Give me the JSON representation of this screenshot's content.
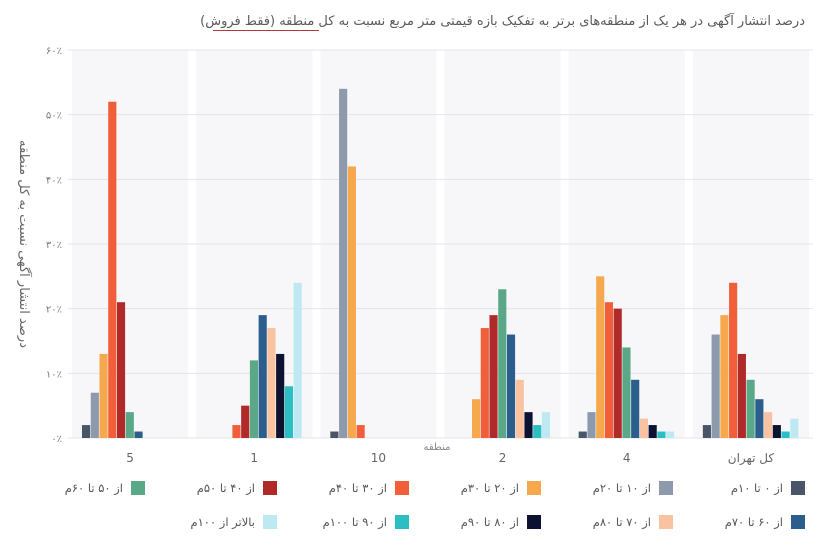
{
  "chart_data": {
    "type": "bar",
    "title": "درصد  انتشار آگهی در هر یک از منطقه‌های برتر به تفکیک بازه قیمتی متر مربع نسبت به کل منطقه (فقط فروش)",
    "xlabel": "منطقه",
    "ylabel": "درصد انتشار آگهی نسبت به کل منطقه",
    "ylim": [
      0,
      60
    ],
    "yticks": [
      "۰٪",
      "۱۰٪",
      "۲۰٪",
      "۳۰٪",
      "۴۰٪",
      "۵۰٪",
      "۶۰٪"
    ],
    "grid": true,
    "legend_position": "bottom",
    "categories": [
      "کل تهران",
      "4",
      "2",
      "10",
      "1",
      "5"
    ],
    "series": [
      {
        "name": "از ۰ تا ۱۰م",
        "color": "#4a5568",
        "values": [
          2,
          1,
          0,
          1,
          0,
          2
        ]
      },
      {
        "name": "از ۱۰ تا ۲۰م",
        "color": "#8d9aab",
        "values": [
          16,
          4,
          0,
          54,
          0,
          7
        ]
      },
      {
        "name": "از ۲۰ تا ۳۰م",
        "color": "#f6a84e",
        "values": [
          19,
          25,
          6,
          42,
          0,
          13
        ]
      },
      {
        "name": "از ۳۰ تا ۴۰م",
        "color": "#f15f3a",
        "values": [
          24,
          21,
          17,
          2,
          2,
          52
        ]
      },
      {
        "name": "از ۴۰ تا ۵۰م",
        "color": "#b12a2a",
        "values": [
          13,
          20,
          19,
          0,
          5,
          21
        ]
      },
      {
        "name": "از ۵۰ تا ۶۰م",
        "color": "#5aa887",
        "values": [
          9,
          14,
          23,
          0,
          12,
          4
        ]
      },
      {
        "name": "از ۶۰ تا ۷۰م",
        "color": "#2b5e8c",
        "values": [
          6,
          9,
          16,
          0,
          19,
          1
        ]
      },
      {
        "name": "از ۷۰ تا ۸۰م",
        "color": "#f9c2a0",
        "values": [
          4,
          3,
          9,
          0,
          17,
          0
        ]
      },
      {
        "name": "از ۸۰ تا ۹۰م",
        "color": "#0d1230",
        "values": [
          2,
          2,
          4,
          0,
          13,
          0
        ]
      },
      {
        "name": "از ۹۰ تا ۱۰۰م",
        "color": "#2bbfc4",
        "values": [
          1,
          1,
          2,
          0,
          8,
          0
        ]
      },
      {
        "name": "بالاتر از ۱۰۰م",
        "color": "#bfe9f2",
        "values": [
          3,
          1,
          4,
          0,
          24,
          0
        ]
      }
    ]
  }
}
